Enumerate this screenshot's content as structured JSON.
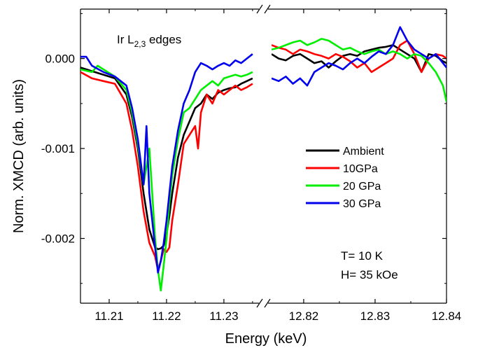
{
  "chart_data": {
    "type": "line",
    "annotation_title": "Ir L",
    "annotation_subscript": "2,3",
    "annotation_suffix": " edges",
    "conditions": [
      "T= 10 K",
      "H= 35 kOe"
    ],
    "xlabel": "Energy (keV)",
    "ylabel": "Norm. XMCD (arb. units)",
    "ylim": [
      -0.00272,
      0.00055
    ],
    "y_ticks": [
      0.0,
      -0.001,
      -0.002
    ],
    "y_tick_labels": [
      "0.000",
      "-0.001",
      "-0.002"
    ],
    "broken_x_axis": true,
    "left_panel": {
      "xlim": [
        11.205,
        11.2355
      ],
      "x_ticks": [
        11.21,
        11.22,
        11.23
      ],
      "x_tick_labels": [
        "11.21",
        "11.22",
        "11.23"
      ]
    },
    "right_panel": {
      "xlim": [
        12.8155,
        12.84
      ],
      "x_ticks": [
        12.82,
        12.83,
        12.84
      ],
      "x_tick_labels": [
        "12.82",
        "12.83",
        "12.84"
      ]
    },
    "legend_position": "center-right",
    "grid": false,
    "series": [
      {
        "name": "Ambient",
        "color": "#000000",
        "left": {
          "x": [
            11.205,
            11.207,
            11.209,
            11.211,
            11.213,
            11.214,
            11.215,
            11.216,
            11.217,
            11.218,
            11.2185,
            11.219,
            11.2195,
            11.22,
            11.2205,
            11.221,
            11.222,
            11.223,
            11.224,
            11.225,
            11.226,
            11.227,
            11.228,
            11.229,
            11.23,
            11.231,
            11.232,
            11.233,
            11.234,
            11.235
          ],
          "y": [
            -0.0001,
            -0.00014,
            -0.00018,
            -0.00022,
            -0.0004,
            -0.00065,
            -0.001,
            -0.0015,
            -0.0019,
            -0.0021,
            -0.00212,
            -0.00211,
            -0.00208,
            -0.00195,
            -0.00175,
            -0.0015,
            -0.0011,
            -0.00085,
            -0.0007,
            -0.00055,
            -0.0005,
            -0.0004,
            -0.00045,
            -0.00038,
            -0.00035,
            -0.00033,
            -0.00032,
            -0.00028,
            -0.00025,
            -0.00022
          ]
        },
        "right": {
          "x": [
            12.8155,
            12.8165,
            12.8175,
            12.8185,
            12.8195,
            12.8205,
            12.8215,
            12.8225,
            12.8235,
            12.8245,
            12.8255,
            12.8265,
            12.8275,
            12.8285,
            12.8295,
            12.8305,
            12.8315,
            12.8325,
            12.8335,
            12.8345,
            12.8355,
            12.8365,
            12.8375,
            12.8385,
            12.8395,
            12.84
          ],
          "y": [
            5e-05,
            0.0,
            -2e-05,
            3e-05,
            5e-05,
            0.0,
            -5e-05,
            -3e-05,
            -0.0001,
            -3e-05,
            3e-05,
            5e-05,
            3e-05,
            8e-05,
            0.0001,
            0.00012,
            0.00013,
            0.00015,
            0.0001,
            5e-05,
            0.0,
            -0.00015,
            5e-05,
            3e-05,
            -3e-05,
            -5e-05
          ]
        }
      },
      {
        "name": "10GPa",
        "color": "#ff0000",
        "left": {
          "x": [
            11.205,
            11.207,
            11.209,
            11.211,
            11.213,
            11.214,
            11.215,
            11.216,
            11.217,
            11.218,
            11.2185,
            11.219,
            11.2195,
            11.22,
            11.2205,
            11.221,
            11.222,
            11.223,
            11.224,
            11.225,
            11.2255,
            11.226,
            11.227,
            11.228,
            11.229,
            11.23,
            11.231,
            11.232,
            11.233,
            11.234,
            11.235
          ],
          "y": [
            -0.00015,
            -0.00022,
            -0.00025,
            -0.00028,
            -0.0005,
            -0.0008,
            -0.0012,
            -0.0017,
            -0.00205,
            -0.0022,
            -0.00235,
            -0.00225,
            -0.00212,
            -0.00215,
            -0.0021,
            -0.0018,
            -0.0014,
            -0.00095,
            -0.00085,
            -0.00075,
            -0.001,
            -0.0006,
            -0.0004,
            -0.0005,
            -0.00035,
            -0.0004,
            -0.00035,
            -0.0003,
            -0.00035,
            -0.00032,
            -0.00028
          ]
        },
        "right": {
          "x": [
            12.8155,
            12.8165,
            12.8175,
            12.8185,
            12.8195,
            12.8205,
            12.8215,
            12.8225,
            12.8235,
            12.8245,
            12.8255,
            12.8265,
            12.8275,
            12.8285,
            12.8295,
            12.8305,
            12.8315,
            12.8325,
            12.8335,
            12.8345,
            12.8355,
            12.8365,
            12.8375,
            12.8385,
            12.8395,
            12.84
          ],
          "y": [
            0.00015,
            0.00012,
            0.0001,
            5e-05,
            0.0001,
            8e-05,
            5e-05,
            3e-05,
            0.0,
            5e-05,
            2e-05,
            -3e-05,
            -0.0001,
            -5e-05,
            -0.00015,
            -0.0001,
            -5e-05,
            0.0,
            0.00015,
            0.0002,
            5e-05,
            -0.00015,
            0.0,
            5e-05,
            3e-05,
            0.0
          ]
        }
      },
      {
        "name": "20 GPa",
        "color": "#00ee00",
        "left": {
          "x": [
            11.205,
            11.207,
            11.208,
            11.209,
            11.211,
            11.213,
            11.214,
            11.215,
            11.216,
            11.217,
            11.218,
            11.2185,
            11.219,
            11.2195,
            11.22,
            11.2205,
            11.221,
            11.222,
            11.223,
            11.224,
            11.225,
            11.226,
            11.227,
            11.228,
            11.229,
            11.23,
            11.231,
            11.232,
            11.233,
            11.234,
            11.235
          ],
          "y": [
            -0.00012,
            -0.00015,
            -8e-05,
            -0.00012,
            -0.0002,
            -0.00035,
            -0.0006,
            -0.00095,
            -0.0014,
            -0.001,
            -0.002,
            -0.00235,
            -0.00258,
            -0.0023,
            -0.002,
            -0.0016,
            -0.0013,
            -0.0009,
            -0.0006,
            -0.00055,
            -0.00045,
            -0.00035,
            -0.0003,
            -0.00025,
            -0.0003,
            -0.00022,
            -0.0002,
            -0.00018,
            -0.0002,
            -0.00018,
            -0.00015
          ]
        },
        "right": {
          "x": [
            12.8155,
            12.8165,
            12.8175,
            12.8185,
            12.8195,
            12.8205,
            12.8215,
            12.8225,
            12.8235,
            12.8245,
            12.8255,
            12.8265,
            12.8275,
            12.8285,
            12.8295,
            12.8305,
            12.8315,
            12.8325,
            12.8335,
            12.8345,
            12.8355,
            12.8365,
            12.8375,
            12.8385,
            12.8395,
            12.84
          ],
          "y": [
            0.0001,
            0.00012,
            0.00015,
            0.00018,
            0.0002,
            0.00015,
            0.00018,
            0.00022,
            0.0002,
            0.00015,
            0.0001,
            0.00012,
            8e-05,
            5e-05,
            8e-05,
            0.0001,
            5e-05,
            8e-05,
            5e-05,
            0.0,
            5e-05,
            3e-05,
            -5e-05,
            -0.00015,
            -0.0003,
            -0.00048
          ]
        }
      },
      {
        "name": "30 GPa",
        "color": "#0000ee",
        "left": {
          "x": [
            11.205,
            11.206,
            11.207,
            11.209,
            11.211,
            11.213,
            11.214,
            11.215,
            11.216,
            11.2165,
            11.217,
            11.218,
            11.2185,
            11.219,
            11.2195,
            11.22,
            11.2205,
            11.221,
            11.222,
            11.223,
            11.224,
            11.225,
            11.226,
            11.227,
            11.228,
            11.229,
            11.23,
            11.231,
            11.232,
            11.233,
            11.234,
            11.235
          ],
          "y": [
            2e-05,
            2e-05,
            -8e-05,
            -0.00015,
            -0.0002,
            -0.0003,
            -0.00055,
            -0.0009,
            -0.0014,
            -0.00075,
            -0.0015,
            -0.0021,
            -0.00238,
            -0.00225,
            -0.00205,
            -0.0018,
            -0.0015,
            -0.0012,
            -0.0008,
            -0.0005,
            -0.00035,
            -0.00015,
            -5e-05,
            -8e-05,
            -0.00012,
            -8e-05,
            -5e-05,
            -8e-05,
            -2e-05,
            -5e-05,
            0.0,
            5e-05
          ]
        },
        "right": {
          "x": [
            12.8155,
            12.8165,
            12.8175,
            12.8185,
            12.8195,
            12.8205,
            12.8215,
            12.8225,
            12.8235,
            12.8245,
            12.8255,
            12.8265,
            12.8275,
            12.8285,
            12.8295,
            12.8305,
            12.8315,
            12.8325,
            12.8335,
            12.8345,
            12.8355,
            12.8365,
            12.8375,
            12.8385,
            12.8395,
            12.84
          ],
          "y": [
            -0.00022,
            -0.00025,
            -0.0002,
            -0.00028,
            -0.00022,
            -0.0003,
            -0.00015,
            -0.0001,
            -5e-05,
            -8e-05,
            -0.00012,
            -5e-05,
            0.0,
            -5e-05,
            2e-05,
            8e-05,
            5e-05,
            0.00015,
            0.00035,
            0.0002,
            0.0001,
            5e-05,
            0.0,
            5e-05,
            -5e-05,
            -0.0001
          ]
        }
      }
    ]
  }
}
